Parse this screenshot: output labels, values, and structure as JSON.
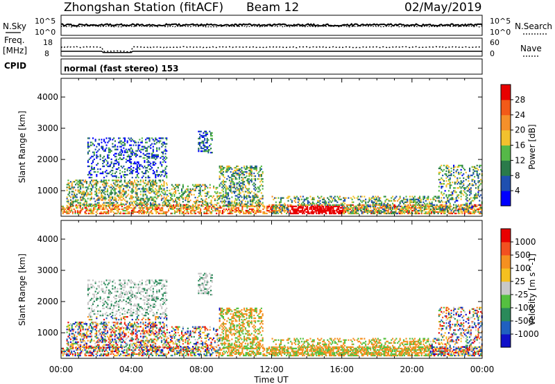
{
  "header": {
    "station": "Zhongshan Station (fitACF)",
    "beam": "Beam 12",
    "date": "02/May/2019"
  },
  "top_panels": {
    "nsky_label": "N.Sky",
    "nsky_ticks": [
      "10^5",
      "10^0"
    ],
    "nsearch_label": "N.Search",
    "nsearch_ticks": [
      "10^5",
      "10^0"
    ],
    "freq_label_1": "Freq.",
    "freq_label_2": "[MHz]",
    "freq_ticks": [
      "18",
      "8"
    ],
    "nave_label": "Nave",
    "nave_ticks": [
      "60",
      "0"
    ],
    "cpid_label": "CPID",
    "cpid_value": "normal (fast stereo) 153"
  },
  "chart_data": [
    {
      "type": "heatmap",
      "panel": "power",
      "ylabel": "Slant Range [km]",
      "y_ticks": [
        1000,
        2000,
        3000,
        4000
      ],
      "ylim": [
        180,
        4600
      ],
      "xlim": [
        0,
        24
      ],
      "colorbar_label": "Power [dB]",
      "colorbar_ticks": [
        "28",
        "24",
        "20",
        "16",
        "12",
        "8",
        "4"
      ],
      "colorbar_colors": [
        "#0000ff",
        "#1f4fb0",
        "#2a7a4a",
        "#55b848",
        "#f2c12e",
        "#f5902a",
        "#f25a18",
        "#e80000"
      ]
    },
    {
      "type": "heatmap",
      "panel": "velocity",
      "ylabel": "Slant Range [km]",
      "y_ticks": [
        1000,
        2000,
        3000,
        4000
      ],
      "ylim": [
        180,
        4600
      ],
      "xlim": [
        0,
        24
      ],
      "xlabel": "Time UT",
      "x_ticks": [
        "00:00",
        "04:00",
        "08:00",
        "12:00",
        "16:00",
        "20:00",
        "00:00"
      ],
      "colorbar_label": "Velocity [m s^-1]",
      "colorbar_ticks": [
        "1000",
        "500",
        "100",
        "25",
        "-25",
        "-100",
        "-500",
        "-1000"
      ],
      "colorbar_colors": [
        "#1010c8",
        "#2060c0",
        "#2a8a5a",
        "#55c040",
        "#c8c8c8",
        "#f5c020",
        "#f59020",
        "#f25020",
        "#e80000"
      ]
    }
  ]
}
